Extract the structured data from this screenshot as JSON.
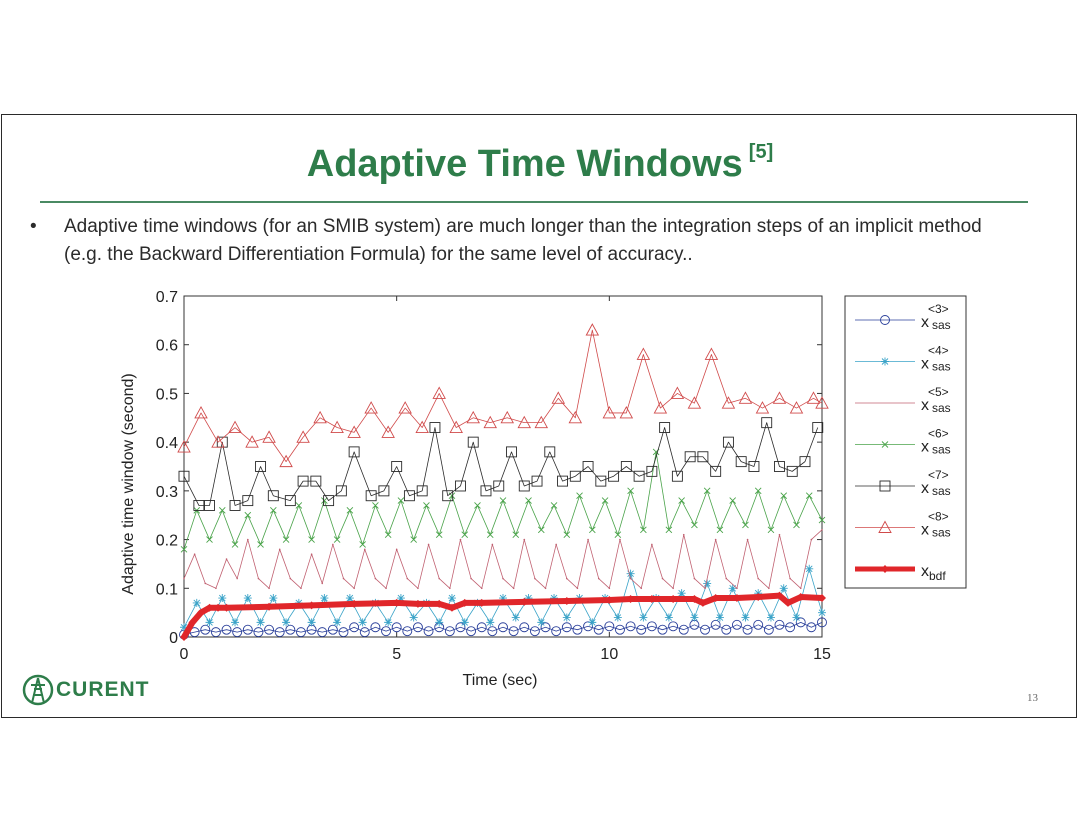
{
  "slide": {
    "title": "Adaptive Time Windows",
    "title_ref": "[5]",
    "bullet_marker": "•",
    "bullet_text": "Adaptive time windows (for an SMIB system) are much longer than the integration steps of an implicit method (e.g. the Backward Differentiation Formula) for the same level of accuracy..",
    "logo_text": "CURENT",
    "page_number": "13",
    "colors": {
      "title": "#2e7d4a",
      "rule": "#4a8a63"
    }
  },
  "chart_data": {
    "type": "line",
    "xlabel": "Time (sec)",
    "ylabel": "Adaptive time window (second)",
    "xlim": [
      0,
      15
    ],
    "ylim": [
      0,
      0.7
    ],
    "xticks": [
      0,
      5,
      10,
      15
    ],
    "yticks": [
      0,
      0.1,
      0.2,
      0.3,
      0.4,
      0.5,
      0.6,
      0.7
    ],
    "ytick_labels": [
      "0",
      "0.1",
      "0.2",
      "0.3",
      "0.4",
      "0.5",
      "0.6",
      "0.7"
    ],
    "grid": false,
    "legend_position": "right",
    "series": [
      {
        "name": "x<3>sas",
        "base": "x",
        "sup": "<3>",
        "sub": "sas",
        "color": "#2a3f9a",
        "marker": "circle",
        "x": [
          0.0,
          0.25,
          0.5,
          0.75,
          1.0,
          1.25,
          1.5,
          1.75,
          2.0,
          2.25,
          2.5,
          2.75,
          3.0,
          3.25,
          3.5,
          3.75,
          4.0,
          4.25,
          4.5,
          4.75,
          5.0,
          5.25,
          5.5,
          5.75,
          6.0,
          6.25,
          6.5,
          6.75,
          7.0,
          7.25,
          7.5,
          7.75,
          8.0,
          8.25,
          8.5,
          8.75,
          9.0,
          9.25,
          9.5,
          9.75,
          10.0,
          10.25,
          10.5,
          10.75,
          11.0,
          11.25,
          11.5,
          11.75,
          12.0,
          12.25,
          12.5,
          12.75,
          13.0,
          13.25,
          13.5,
          13.75,
          14.0,
          14.25,
          14.5,
          14.75,
          15.0
        ],
        "y": [
          0.005,
          0.01,
          0.015,
          0.01,
          0.015,
          0.01,
          0.015,
          0.01,
          0.015,
          0.01,
          0.015,
          0.01,
          0.015,
          0.01,
          0.015,
          0.01,
          0.02,
          0.01,
          0.02,
          0.012,
          0.02,
          0.012,
          0.02,
          0.012,
          0.02,
          0.012,
          0.02,
          0.012,
          0.02,
          0.012,
          0.02,
          0.012,
          0.02,
          0.012,
          0.02,
          0.012,
          0.02,
          0.015,
          0.022,
          0.015,
          0.022,
          0.015,
          0.022,
          0.015,
          0.022,
          0.015,
          0.022,
          0.015,
          0.025,
          0.015,
          0.025,
          0.015,
          0.025,
          0.015,
          0.025,
          0.015,
          0.025,
          0.02,
          0.03,
          0.02,
          0.03
        ]
      },
      {
        "name": "x<4>sas",
        "base": "x",
        "sup": "<4>",
        "sub": "sas",
        "color": "#3aa3c8",
        "marker": "star",
        "x": [
          0.0,
          0.3,
          0.6,
          0.9,
          1.2,
          1.5,
          1.8,
          2.1,
          2.4,
          2.7,
          3.0,
          3.3,
          3.6,
          3.9,
          4.2,
          4.5,
          4.8,
          5.1,
          5.4,
          5.7,
          6.0,
          6.3,
          6.6,
          6.9,
          7.2,
          7.5,
          7.8,
          8.1,
          8.4,
          8.7,
          9.0,
          9.3,
          9.6,
          9.9,
          10.2,
          10.5,
          10.8,
          11.1,
          11.4,
          11.7,
          12.0,
          12.3,
          12.6,
          12.9,
          13.2,
          13.5,
          13.8,
          14.1,
          14.4,
          14.7,
          15.0
        ],
        "y": [
          0.02,
          0.07,
          0.03,
          0.08,
          0.03,
          0.08,
          0.03,
          0.08,
          0.03,
          0.07,
          0.03,
          0.08,
          0.03,
          0.08,
          0.03,
          0.07,
          0.03,
          0.08,
          0.04,
          0.07,
          0.03,
          0.08,
          0.03,
          0.07,
          0.03,
          0.08,
          0.04,
          0.08,
          0.03,
          0.08,
          0.04,
          0.08,
          0.03,
          0.08,
          0.04,
          0.13,
          0.04,
          0.08,
          0.04,
          0.09,
          0.04,
          0.11,
          0.04,
          0.1,
          0.04,
          0.09,
          0.04,
          0.1,
          0.04,
          0.14,
          0.05
        ]
      },
      {
        "name": "x<5>sas",
        "base": "x",
        "sup": "<5>",
        "sub": "sas",
        "color": "#c06070",
        "marker": "dot",
        "x": [
          0.0,
          0.25,
          0.5,
          0.75,
          1.0,
          1.25,
          1.5,
          1.75,
          2.0,
          2.25,
          2.5,
          2.75,
          3.0,
          3.25,
          3.5,
          3.75,
          4.0,
          4.25,
          4.5,
          4.75,
          5.0,
          5.25,
          5.5,
          5.75,
          6.0,
          6.25,
          6.5,
          6.75,
          7.0,
          7.25,
          7.5,
          7.75,
          8.0,
          8.25,
          8.5,
          8.75,
          9.0,
          9.25,
          9.5,
          9.75,
          10.0,
          10.25,
          10.5,
          10.75,
          11.0,
          11.25,
          11.5,
          11.75,
          12.0,
          12.25,
          12.5,
          12.75,
          13.0,
          13.25,
          13.5,
          13.75,
          14.0,
          14.25,
          14.5,
          14.75,
          15.0
        ],
        "y": [
          0.12,
          0.17,
          0.11,
          0.1,
          0.16,
          0.12,
          0.2,
          0.12,
          0.1,
          0.18,
          0.12,
          0.1,
          0.17,
          0.11,
          0.19,
          0.12,
          0.1,
          0.18,
          0.12,
          0.1,
          0.18,
          0.12,
          0.1,
          0.19,
          0.12,
          0.1,
          0.2,
          0.12,
          0.1,
          0.19,
          0.12,
          0.1,
          0.2,
          0.12,
          0.1,
          0.19,
          0.12,
          0.1,
          0.2,
          0.12,
          0.1,
          0.2,
          0.12,
          0.1,
          0.19,
          0.12,
          0.1,
          0.21,
          0.12,
          0.1,
          0.2,
          0.12,
          0.1,
          0.2,
          0.12,
          0.1,
          0.21,
          0.12,
          0.1,
          0.2,
          0.22
        ]
      },
      {
        "name": "x<6>sas",
        "base": "x",
        "sup": "<6>",
        "sub": "sas",
        "color": "#4aa34a",
        "marker": "x",
        "x": [
          0.0,
          0.3,
          0.6,
          0.9,
          1.2,
          1.5,
          1.8,
          2.1,
          2.4,
          2.7,
          3.0,
          3.3,
          3.6,
          3.9,
          4.2,
          4.5,
          4.8,
          5.1,
          5.4,
          5.7,
          6.0,
          6.3,
          6.6,
          6.9,
          7.2,
          7.5,
          7.8,
          8.1,
          8.4,
          8.7,
          9.0,
          9.3,
          9.6,
          9.9,
          10.2,
          10.5,
          10.8,
          11.1,
          11.4,
          11.7,
          12.0,
          12.3,
          12.6,
          12.9,
          13.2,
          13.5,
          13.8,
          14.1,
          14.4,
          14.7,
          15.0
        ],
        "y": [
          0.18,
          0.26,
          0.2,
          0.26,
          0.19,
          0.25,
          0.19,
          0.26,
          0.2,
          0.27,
          0.2,
          0.28,
          0.2,
          0.26,
          0.19,
          0.27,
          0.21,
          0.28,
          0.2,
          0.27,
          0.21,
          0.29,
          0.21,
          0.27,
          0.21,
          0.28,
          0.21,
          0.28,
          0.22,
          0.27,
          0.21,
          0.29,
          0.22,
          0.28,
          0.21,
          0.3,
          0.22,
          0.38,
          0.22,
          0.28,
          0.23,
          0.3,
          0.22,
          0.28,
          0.23,
          0.3,
          0.22,
          0.29,
          0.23,
          0.29,
          0.24
        ]
      },
      {
        "name": "x<7>sas",
        "base": "x",
        "sup": "<7>",
        "sub": "sas",
        "color": "#2a2a2a",
        "marker": "square",
        "x": [
          0.0,
          0.35,
          0.6,
          0.9,
          1.2,
          1.5,
          1.8,
          2.1,
          2.5,
          2.8,
          3.1,
          3.4,
          3.7,
          4.0,
          4.4,
          4.7,
          5.0,
          5.3,
          5.6,
          5.9,
          6.2,
          6.5,
          6.8,
          7.1,
          7.4,
          7.7,
          8.0,
          8.3,
          8.6,
          8.9,
          9.2,
          9.5,
          9.8,
          10.1,
          10.4,
          10.7,
          11.0,
          11.3,
          11.6,
          11.9,
          12.2,
          12.5,
          12.8,
          13.1,
          13.4,
          13.7,
          14.0,
          14.3,
          14.6,
          14.9
        ],
        "y": [
          0.33,
          0.27,
          0.27,
          0.4,
          0.27,
          0.28,
          0.35,
          0.29,
          0.28,
          0.32,
          0.32,
          0.28,
          0.3,
          0.38,
          0.29,
          0.3,
          0.35,
          0.29,
          0.3,
          0.43,
          0.29,
          0.31,
          0.4,
          0.3,
          0.31,
          0.38,
          0.31,
          0.32,
          0.38,
          0.32,
          0.33,
          0.35,
          0.32,
          0.33,
          0.35,
          0.33,
          0.34,
          0.43,
          0.33,
          0.37,
          0.37,
          0.34,
          0.4,
          0.36,
          0.35,
          0.44,
          0.35,
          0.34,
          0.36,
          0.43
        ]
      },
      {
        "name": "x<8>sas",
        "base": "x",
        "sup": "<8>",
        "sub": "sas",
        "color": "#d04a4a",
        "marker": "triangle",
        "x": [
          0.0,
          0.4,
          0.8,
          1.2,
          1.6,
          2.0,
          2.4,
          2.8,
          3.2,
          3.6,
          4.0,
          4.4,
          4.8,
          5.2,
          5.6,
          6.0,
          6.4,
          6.8,
          7.2,
          7.6,
          8.0,
          8.4,
          8.8,
          9.2,
          9.6,
          10.0,
          10.4,
          10.8,
          11.2,
          11.6,
          12.0,
          12.4,
          12.8,
          13.2,
          13.6,
          14.0,
          14.4,
          14.8,
          15.0
        ],
        "y": [
          0.39,
          0.46,
          0.4,
          0.43,
          0.4,
          0.41,
          0.36,
          0.41,
          0.45,
          0.43,
          0.42,
          0.47,
          0.42,
          0.47,
          0.43,
          0.5,
          0.43,
          0.45,
          0.44,
          0.45,
          0.44,
          0.44,
          0.49,
          0.45,
          0.63,
          0.46,
          0.46,
          0.58,
          0.47,
          0.5,
          0.48,
          0.58,
          0.48,
          0.49,
          0.47,
          0.49,
          0.47,
          0.49,
          0.48
        ]
      },
      {
        "name": "xbdf",
        "base": "x",
        "sup": "",
        "sub": "bdf",
        "color": "#e0262a",
        "marker": "diamond-thick",
        "x": [
          0.0,
          0.2,
          0.4,
          0.6,
          0.8,
          1.0,
          2.0,
          3.0,
          4.0,
          5.0,
          5.5,
          6.0,
          6.3,
          6.6,
          7.0,
          8.0,
          9.0,
          10.0,
          10.5,
          11.0,
          11.5,
          12.0,
          12.2,
          12.5,
          13.0,
          13.5,
          14.0,
          14.2,
          14.5,
          15.0
        ],
        "y": [
          0.0,
          0.03,
          0.05,
          0.06,
          0.06,
          0.06,
          0.062,
          0.065,
          0.068,
          0.07,
          0.068,
          0.068,
          0.06,
          0.07,
          0.07,
          0.072,
          0.074,
          0.076,
          0.078,
          0.078,
          0.078,
          0.078,
          0.07,
          0.08,
          0.08,
          0.082,
          0.085,
          0.07,
          0.082,
          0.08
        ]
      }
    ]
  }
}
